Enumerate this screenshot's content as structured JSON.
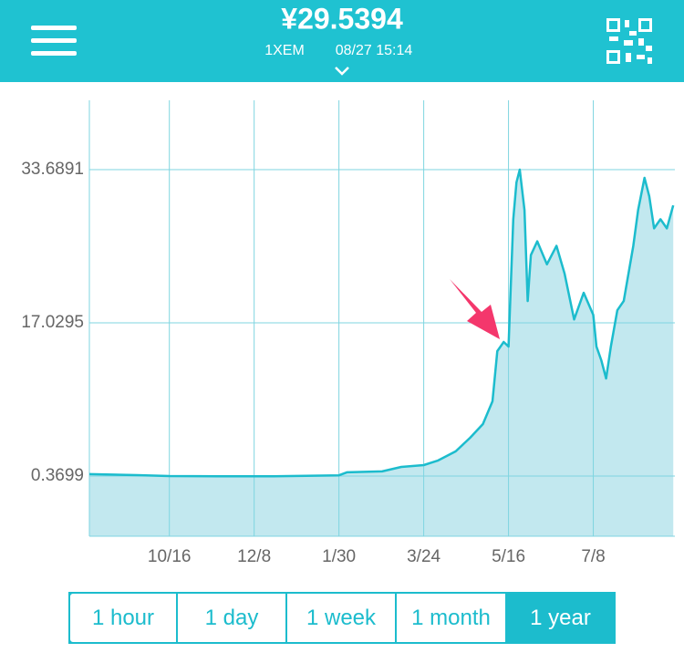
{
  "header": {
    "title": "¥29.5394",
    "unit": "1XEM",
    "timestamp": "08/27 15:14"
  },
  "chart_data": {
    "type": "area",
    "x": [
      0,
      30,
      50,
      81,
      115,
      156,
      161,
      183,
      195,
      209,
      218,
      229,
      238,
      246,
      252,
      255,
      259,
      262,
      265,
      267,
      269,
      272,
      274,
      276,
      280,
      286,
      292,
      297,
      303,
      309,
      315,
      317,
      320,
      323,
      326,
      330,
      334,
      340,
      343,
      347,
      350,
      353,
      357,
      361,
      365
    ],
    "values": [
      0.57,
      0.47,
      0.37,
      0.35,
      0.35,
      0.45,
      0.77,
      0.87,
      1.36,
      1.56,
      2.06,
      3.05,
      4.53,
      6.02,
      8.5,
      13.95,
      14.95,
      14.45,
      28.3,
      32.3,
      33.69,
      29.3,
      19.4,
      24.4,
      25.9,
      23.4,
      25.4,
      22.4,
      17.4,
      20.3,
      17.9,
      14.45,
      12.96,
      10.98,
      14.45,
      18.4,
      19.4,
      25.4,
      29.3,
      32.8,
      30.8,
      27.3,
      28.3,
      27.3,
      29.8
    ],
    "xlim": [
      0,
      366
    ],
    "xticks": [
      {
        "value": 50,
        "label": "10/16"
      },
      {
        "value": 103,
        "label": "12/8"
      },
      {
        "value": 156,
        "label": "1/30"
      },
      {
        "value": 209,
        "label": "3/24"
      },
      {
        "value": 262,
        "label": "5/16"
      },
      {
        "value": 315,
        "label": "7/8"
      }
    ],
    "ylim": [
      -6.18,
      41.23
    ],
    "yticks": [
      0.3699,
      17.0295,
      33.6891
    ],
    "color": "#1cbccd",
    "fill": "#c2e8ef",
    "grid": true
  },
  "buttons": {
    "labels": [
      "1 hour",
      "1 day",
      "1 week",
      "1 month",
      "1 year"
    ],
    "selected": 4
  }
}
